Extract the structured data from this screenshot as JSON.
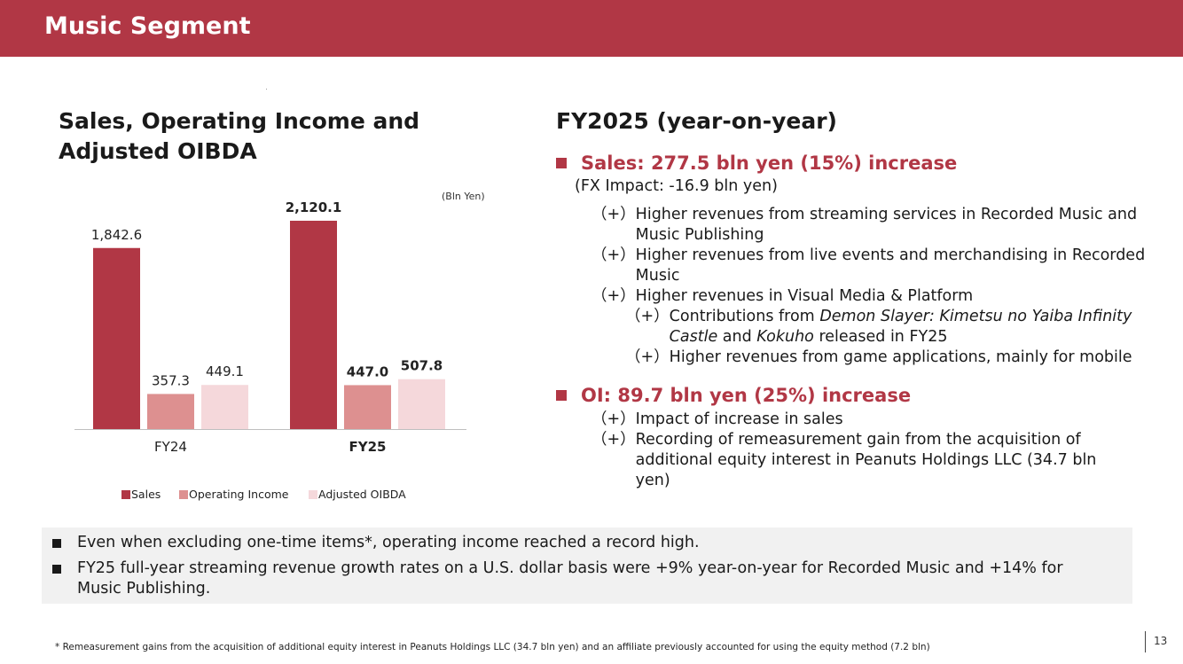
{
  "header": {
    "title": "Music Segment"
  },
  "left": {
    "title": "Sales, Operating Income and Adjusted OIBDA"
  },
  "chart_data": {
    "type": "bar",
    "unit_label": "(Bln Yen)",
    "categories": [
      "FY24",
      "FY25"
    ],
    "series": [
      {
        "name": "Sales",
        "values": [
          1842.6,
          2120.1
        ],
        "labels": [
          "1,842.6",
          "2,120.1"
        ],
        "color": "#b13745"
      },
      {
        "name": "Operating Income",
        "values": [
          357.3,
          447.0
        ],
        "labels": [
          "357.3",
          "447.0"
        ],
        "color": "#dd9090"
      },
      {
        "name": "Adjusted OIBDA",
        "values": [
          449.1,
          507.8
        ],
        "labels": [
          "449.1",
          "507.8"
        ],
        "color": "#f5d8db"
      }
    ],
    "bold_category": "FY25",
    "legend_position": "bottom"
  },
  "right": {
    "title": "FY2025 (year-on-year)",
    "sales": {
      "heading": "Sales: 277.5 bln yen (15%) increase",
      "fx": "(FX Impact: -16.9 bln yen)",
      "items": [
        {
          "marker": "（+）",
          "text": "Higher revenues from streaming services in Recorded Music and Music Publishing"
        },
        {
          "marker": "（+）",
          "text": "Higher revenues from live events and merchandising in Recorded Music"
        },
        {
          "marker": "（+）",
          "text": "Higher revenues in Visual Media & Platform"
        }
      ],
      "subitems": [
        {
          "marker": "（+）",
          "pre": "Contributions from ",
          "em1": "Demon Slayer: Kimetsu no Yaiba Infinity Castle",
          "mid": " and ",
          "em2": "Kokuho",
          "post": " released in FY25"
        },
        {
          "marker": "（+）",
          "text": "Higher revenues from game applications, mainly for mobile"
        }
      ]
    },
    "oi": {
      "heading": "OI: 89.7 bln yen (25%) increase",
      "items": [
        {
          "marker": "（+）",
          "text": "Impact of increase in sales"
        },
        {
          "marker": "（+）",
          "text": "Recording of remeasurement gain from the acquisition of additional equity interest in Peanuts Holdings LLC (34.7 bln yen)"
        }
      ]
    }
  },
  "notes": [
    "Even when excluding one-time items*, operating income reached a record high.",
    "FY25 full-year streaming revenue growth rates on a U.S. dollar basis were +9% year-on-year for Recorded Music and +14% for Music Publishing."
  ],
  "footnote": "* Remeasurement gains from the acquisition of additional equity interest in Peanuts Holdings LLC (34.7 bln yen) and an affiliate previously accounted for using the equity method (7.2 bln)",
  "page_number": "13"
}
